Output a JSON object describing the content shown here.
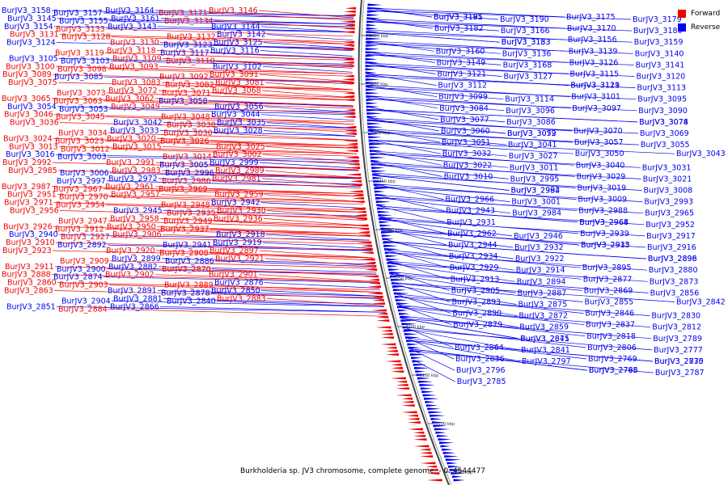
{
  "title": "Burkholderia sp. JV3 chromosome, complete genome. - 0..4544477",
  "legend": [
    {
      "label": "Forward",
      "color": "#ee0000"
    },
    {
      "label": "Reverse",
      "color": "#0000ee"
    }
  ],
  "colors": {
    "forward": "#ee0000",
    "reverse": "#0000ee",
    "backbone": "#444444"
  },
  "scale_ticks": [
    "3500 kbp",
    "3450 kbp",
    "3400 kbp",
    "3350 kbp",
    "3300 kbp",
    "3250 kbp",
    "3200 kbp",
    "3150 kbp",
    "3100 kbp",
    "3050 kbp"
  ],
  "left_labels": [
    {
      "text": "BurJV3_3158",
      "strand": "reverse"
    },
    {
      "text": "BurJV3_3157",
      "strand": "reverse"
    },
    {
      "text": "BurJV3_3164",
      "strand": "reverse"
    },
    {
      "text": "BurJV3_3171",
      "strand": "forward"
    },
    {
      "text": "BurJV3_3146",
      "strand": "forward"
    },
    {
      "text": "BurJV3_3145",
      "strand": "reverse"
    },
    {
      "text": "BurJV3_3155",
      "strand": "reverse"
    },
    {
      "text": "BurJV3_3161",
      "strand": "reverse"
    },
    {
      "text": "BurJV3_3134",
      "strand": "forward"
    },
    {
      "text": "BurJV3_3144",
      "strand": "reverse"
    },
    {
      "text": "BurJV3_3154",
      "strand": "reverse"
    },
    {
      "text": "BurJV3_3133",
      "strand": "forward"
    },
    {
      "text": "BurJV3_3143",
      "strand": "reverse"
    },
    {
      "text": "BurJV3_3132",
      "strand": "forward"
    },
    {
      "text": "BurJV3_3142",
      "strand": "reverse"
    },
    {
      "text": "BurJV3_3131",
      "strand": "forward"
    },
    {
      "text": "BurJV3_3128",
      "strand": "forward"
    },
    {
      "text": "BurJV3_3130",
      "strand": "forward"
    },
    {
      "text": "BurJV3_3123",
      "strand": "reverse"
    },
    {
      "text": "BurJV3_3125",
      "strand": "reverse"
    },
    {
      "text": "BurJV3_3124",
      "strand": "reverse"
    },
    {
      "text": "BurJV3_3119",
      "strand": "forward"
    },
    {
      "text": "BurJV3_3118",
      "strand": "forward"
    },
    {
      "text": "BurJV3_3117",
      "strand": "reverse"
    },
    {
      "text": "BurJV3_3116",
      "strand": "reverse"
    },
    {
      "text": "BurJV3_3105",
      "strand": "reverse"
    },
    {
      "text": "BurJV3_3103",
      "strand": "reverse"
    },
    {
      "text": "BurJV3_3109",
      "strand": "forward"
    },
    {
      "text": "BurJV3_3110",
      "strand": "forward"
    },
    {
      "text": "BurJV3_3102",
      "strand": "reverse"
    },
    {
      "text": "BurJV3_3100",
      "strand": "forward"
    },
    {
      "text": "BurJV3_3098",
      "strand": "forward"
    },
    {
      "text": "BurJV3_3093",
      "strand": "forward"
    },
    {
      "text": "BurJV3_3092",
      "strand": "forward"
    },
    {
      "text": "BurJV3_3091",
      "strand": "forward"
    },
    {
      "text": "BurJV3_3089",
      "strand": "forward"
    },
    {
      "text": "BurJV3_3085",
      "strand": "reverse"
    },
    {
      "text": "BurJV3_3083",
      "strand": "forward"
    },
    {
      "text": "BurJV3_3082",
      "strand": "forward"
    },
    {
      "text": "BurJV3_3081",
      "strand": "forward"
    },
    {
      "text": "BurJV3_3075",
      "strand": "forward"
    },
    {
      "text": "BurJV3_3073",
      "strand": "forward"
    },
    {
      "text": "BurJV3_3072",
      "strand": "forward"
    },
    {
      "text": "BurJV3_3071",
      "strand": "forward"
    },
    {
      "text": "BurJV3_3068",
      "strand": "forward"
    },
    {
      "text": "BurJV3_3065",
      "strand": "forward"
    },
    {
      "text": "BurJV3_3063",
      "strand": "forward"
    },
    {
      "text": "BurJV3_3062",
      "strand": "forward"
    },
    {
      "text": "BurJV3_3058",
      "strand": "reverse"
    },
    {
      "text": "BurJV3_3056",
      "strand": "reverse"
    },
    {
      "text": "BurJV3_3054",
      "strand": "reverse"
    },
    {
      "text": "BurJV3_3053",
      "strand": "reverse"
    },
    {
      "text": "BurJV3_3049",
      "strand": "forward"
    },
    {
      "text": "BurJV3_3048",
      "strand": "forward"
    },
    {
      "text": "BurJV3_3044",
      "strand": "reverse"
    },
    {
      "text": "BurJV3_3046",
      "strand": "forward"
    },
    {
      "text": "BurJV3_3045",
      "strand": "forward"
    },
    {
      "text": "BurJV3_3042",
      "strand": "reverse"
    },
    {
      "text": "BurJV3_3038",
      "strand": "forward"
    },
    {
      "text": "BurJV3_3035",
      "strand": "reverse"
    },
    {
      "text": "BurJV3_3036",
      "strand": "forward"
    },
    {
      "text": "BurJV3_3034",
      "strand": "forward"
    },
    {
      "text": "BurJV3_3033",
      "strand": "reverse"
    },
    {
      "text": "BurJV3_3030",
      "strand": "forward"
    },
    {
      "text": "BurJV3_3028",
      "strand": "reverse"
    },
    {
      "text": "BurJV3_3024",
      "strand": "forward"
    },
    {
      "text": "BurJV3_3023",
      "strand": "forward"
    },
    {
      "text": "BurJV3_3020",
      "strand": "forward"
    },
    {
      "text": "BurJV3_3026",
      "strand": "forward"
    },
    {
      "text": "BurJV3_3025",
      "strand": "forward"
    },
    {
      "text": "BurJV3_3013",
      "strand": "forward"
    },
    {
      "text": "BurJV3_3012",
      "strand": "forward"
    },
    {
      "text": "BurJV3_3015",
      "strand": "forward"
    },
    {
      "text": "BurJV3_3014",
      "strand": "forward"
    },
    {
      "text": "BurJV3_3002",
      "strand": "forward"
    },
    {
      "text": "BurJV3_3016",
      "strand": "reverse"
    },
    {
      "text": "BurJV3_3003",
      "strand": "reverse"
    },
    {
      "text": "BurJV3_2991",
      "strand": "forward"
    },
    {
      "text": "BurJV3_3005",
      "strand": "reverse"
    },
    {
      "text": "BurJV3_2999",
      "strand": "reverse"
    },
    {
      "text": "BurJV3_2992",
      "strand": "forward"
    },
    {
      "text": "BurJV3_3006",
      "strand": "reverse"
    },
    {
      "text": "BurJV3_2983",
      "strand": "forward"
    },
    {
      "text": "BurJV3_2996",
      "strand": "reverse"
    },
    {
      "text": "BurJV3_2989",
      "strand": "forward"
    },
    {
      "text": "BurJV3_2985",
      "strand": "forward"
    },
    {
      "text": "BurJV3_2997",
      "strand": "reverse"
    },
    {
      "text": "BurJV3_2972",
      "strand": "reverse"
    },
    {
      "text": "BurJV3_2986",
      "strand": "forward"
    },
    {
      "text": "BurJV3_2981",
      "strand": "forward"
    },
    {
      "text": "BurJV3_2987",
      "strand": "forward"
    },
    {
      "text": "BurJV3_2967",
      "strand": "forward"
    },
    {
      "text": "BurJV3_2961",
      "strand": "forward"
    },
    {
      "text": "BurJV3_2969",
      "strand": "forward"
    },
    {
      "text": "BurJV3_2959",
      "strand": "forward"
    },
    {
      "text": "BurJV3_2951",
      "strand": "forward"
    },
    {
      "text": "BurJV3_2970",
      "strand": "forward"
    },
    {
      "text": "BurJV3_2957",
      "strand": "forward"
    },
    {
      "text": "BurJV3_2948",
      "strand": "forward"
    },
    {
      "text": "BurJV3_2942",
      "strand": "reverse"
    },
    {
      "text": "BurJV3_2971",
      "strand": "forward"
    },
    {
      "text": "BurJV3_2954",
      "strand": "forward"
    },
    {
      "text": "BurJV3_2945",
      "strand": "reverse"
    },
    {
      "text": "BurJV3_2935",
      "strand": "forward"
    },
    {
      "text": "BurJV3_2930",
      "strand": "forward"
    },
    {
      "text": "BurJV3_2956",
      "strand": "forward"
    },
    {
      "text": "BurJV3_2947",
      "strand": "forward"
    },
    {
      "text": "BurJV3_2958",
      "strand": "forward"
    },
    {
      "text": "BurJV3_2949",
      "strand": "forward"
    },
    {
      "text": "BurJV3_2936",
      "strand": "forward"
    },
    {
      "text": "BurJV3_2926",
      "strand": "forward"
    },
    {
      "text": "BurJV3_2912",
      "strand": "forward"
    },
    {
      "text": "BurJV3_2950",
      "strand": "forward"
    },
    {
      "text": "BurJV3_2937",
      "strand": "forward"
    },
    {
      "text": "BurJV3_2918",
      "strand": "reverse"
    },
    {
      "text": "BurJV3_2940",
      "strand": "reverse"
    },
    {
      "text": "BurJV3_2927",
      "strand": "forward"
    },
    {
      "text": "BurJV3_2906",
      "strand": "forward"
    },
    {
      "text": "BurJV3_2941",
      "strand": "reverse"
    },
    {
      "text": "BurJV3_2919",
      "strand": "reverse"
    },
    {
      "text": "BurJV3_2910",
      "strand": "forward"
    },
    {
      "text": "BurJV3_2892",
      "strand": "reverse"
    },
    {
      "text": "BurJV3_2920",
      "strand": "forward"
    },
    {
      "text": "BurJV3_2908",
      "strand": "forward"
    },
    {
      "text": "BurJV3_2897",
      "strand": "forward"
    },
    {
      "text": "BurJV3_2923",
      "strand": "forward"
    },
    {
      "text": "BurJV3_2909",
      "strand": "forward"
    },
    {
      "text": "BurJV3_2899",
      "strand": "reverse"
    },
    {
      "text": "BurJV3_2886",
      "strand": "reverse"
    },
    {
      "text": "BurJV3_2921",
      "strand": "forward"
    },
    {
      "text": "BurJV3_2911",
      "strand": "forward"
    },
    {
      "text": "BurJV3_2900",
      "strand": "reverse"
    },
    {
      "text": "BurJV3_2882",
      "strand": "reverse"
    },
    {
      "text": "BurJV3_2870",
      "strand": "forward"
    },
    {
      "text": "BurJV3_2901",
      "strand": "forward"
    },
    {
      "text": "BurJV3_2888",
      "strand": "forward"
    },
    {
      "text": "BurJV3_2874",
      "strand": "reverse"
    },
    {
      "text": "BurJV3_2902",
      "strand": "forward"
    },
    {
      "text": "BurJV3_2889",
      "strand": "forward"
    },
    {
      "text": "BurJV3_2876",
      "strand": "reverse"
    },
    {
      "text": "BurJV3_2860",
      "strand": "forward"
    },
    {
      "text": "BurJV3_2903",
      "strand": "forward"
    },
    {
      "text": "BurJV3_2891",
      "strand": "reverse"
    },
    {
      "text": "BurJV3_2878",
      "strand": "reverse"
    },
    {
      "text": "BurJV3_2850",
      "strand": "reverse"
    },
    {
      "text": "BurJV3_2863",
      "strand": "forward"
    },
    {
      "text": "BurJV3_2904",
      "strand": "reverse"
    },
    {
      "text": "BurJV3_2881",
      "strand": "reverse"
    },
    {
      "text": "BurJV3_2840",
      "strand": "reverse"
    },
    {
      "text": "BurJV3_2883",
      "strand": "forward"
    },
    {
      "text": "BurJV3_2851",
      "strand": "reverse"
    },
    {
      "text": "BurJV3_2884",
      "strand": "forward"
    },
    {
      "text": "BurJV3_2866",
      "strand": "reverse"
    }
  ],
  "right_labels": [
    "BurJV3_3185",
    "BurJV3_3190",
    "BurJV3_3175",
    "BurJV3_3179",
    "BurJV3_3191",
    "BurJV3_3166",
    "BurJV3_3170",
    "BurJV3_3180",
    "BurJV3_3182",
    "BurJV3_3153",
    "BurJV3_3156",
    "BurJV3_3159",
    "BurJV3_3183",
    "BurJV3_3136",
    "BurJV3_3139",
    "BurJV3_3140",
    "BurJV3_3160",
    "BurJV3_3168",
    "BurJV3_3126",
    "BurJV3_3141",
    "BurJV3_3149",
    "BurJV3_3127",
    "BurJV3_3115",
    "BurJV3_3120",
    "BurJV3_3121",
    "BurJV3_3129",
    "BurJV3_3111",
    "BurJV3_3113",
    "BurJV3_3112",
    "BurJV3_3114",
    "BurJV3_3101",
    "BurJV3_3095",
    "BurJV3_3099",
    "BurJV3_3096",
    "BurJV3_3097",
    "BurJV3_3090",
    "BurJV3_3084",
    "BurJV3_3086",
    "BurJV3_3078",
    "BurJV3_3074",
    "BurJV3_3077",
    "BurJV3_3079",
    "BurJV3_3070",
    "BurJV3_3069",
    "BurJV3_3060",
    "BurJV3_3052",
    "BurJV3_3057",
    "BurJV3_3055",
    "BurJV3_3051",
    "BurJV3_3041",
    "BurJV3_3050",
    "BurJV3_3043",
    "BurJV3_3032",
    "BurJV3_3027",
    "BurJV3_3040",
    "BurJV3_3031",
    "BurJV3_3022",
    "BurJV3_3011",
    "BurJV3_3029",
    "BurJV3_3021",
    "BurJV3_3010",
    "BurJV3_2995",
    "BurJV3_3019",
    "BurJV3_3008",
    "BurJV3_2994",
    "BurJV3_2982",
    "BurJV3_3009",
    "BurJV3_2993",
    "BurJV3_2966",
    "BurJV3_3001",
    "BurJV3_2988",
    "BurJV3_2965",
    "BurJV3_2943",
    "BurJV3_2984",
    "BurJV3_2968",
    "BurJV3_2952",
    "BurJV3_2931",
    "BurJV3_2964",
    "BurJV3_2939",
    "BurJV3_2917",
    "BurJV3_2962",
    "BurJV3_2946",
    "BurJV3_2933",
    "BurJV3_2916",
    "BurJV3_2944",
    "BurJV3_2932",
    "BurJV3_2915",
    "BurJV3_2896",
    "BurJV3_2934",
    "BurJV3_2922",
    "BurJV3_2898",
    "BurJV3_2880",
    "BurJV3_2929",
    "BurJV3_2914",
    "BurJV3_2895",
    "BurJV3_2873",
    "BurJV3_2913",
    "BurJV3_2894",
    "BurJV3_2877",
    "BurJV3_2856",
    "BurJV3_2905",
    "BurJV3_2887",
    "BurJV3_2869",
    "BurJV3_2842",
    "BurJV3_2893",
    "BurJV3_2875",
    "BurJV3_2855",
    "BurJV3_2830",
    "BurJV3_2890",
    "BurJV3_2872",
    "BurJV3_2846",
    "BurJV3_2812",
    "BurJV3_2879",
    "BurJV3_2859",
    "BurJV3_2837",
    "BurJV3_2789",
    "BurJV3_2871",
    "BurJV3_2845",
    "BurJV3_2818",
    "BurJV3_2777",
    "BurJV3_2864",
    "BurJV3_2841",
    "BurJV3_2806",
    "BurJV3_2770",
    "BurJV3_2836",
    "BurJV3_2797",
    "BurJV3_2769",
    "BurJV3_2835",
    "BurJV3_2796",
    "BurJV3_2768",
    "BurJV3_2795",
    "BurJV3_2787",
    "BurJV3_2785"
  ]
}
